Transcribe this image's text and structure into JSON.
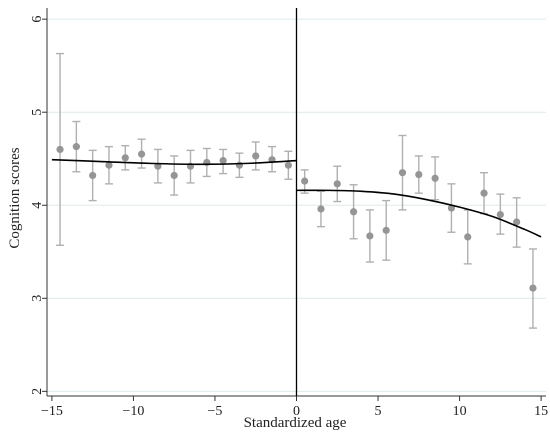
{
  "chart_data": {
    "type": "scatter",
    "title": "",
    "xlabel": "Standardized age",
    "ylabel": "Cognition scores",
    "xlim": [
      -15.3,
      15.3
    ],
    "ylim": [
      1.95,
      6.12
    ],
    "xticks": [
      -15,
      -10,
      -5,
      0,
      5,
      10,
      15
    ],
    "yticks": [
      2,
      3,
      4,
      5,
      6
    ],
    "xtick_labels": [
      "−15",
      "−10",
      "−5",
      "0",
      "5",
      "10",
      "15"
    ],
    "ytick_labels": [
      "2",
      "3",
      "4",
      "5",
      "6"
    ],
    "grid": "horizontal",
    "legend": "none",
    "cutoff_x": 0,
    "colors": {
      "points": "#959595",
      "error_bars": "#b0b0b0",
      "fit_line": "#000000",
      "grid": "#dde9ec"
    },
    "binned_means": [
      {
        "x": -14.5,
        "y": 4.6,
        "lo": 3.57,
        "hi": 5.63
      },
      {
        "x": -13.5,
        "y": 4.63,
        "lo": 4.36,
        "hi": 4.9
      },
      {
        "x": -12.5,
        "y": 4.32,
        "lo": 4.05,
        "hi": 4.59
      },
      {
        "x": -11.5,
        "y": 4.43,
        "lo": 4.23,
        "hi": 4.63
      },
      {
        "x": -10.5,
        "y": 4.51,
        "lo": 4.38,
        "hi": 4.64
      },
      {
        "x": -9.5,
        "y": 4.55,
        "lo": 4.4,
        "hi": 4.71
      },
      {
        "x": -8.5,
        "y": 4.42,
        "lo": 4.24,
        "hi": 4.6
      },
      {
        "x": -7.5,
        "y": 4.32,
        "lo": 4.11,
        "hi": 4.53
      },
      {
        "x": -6.5,
        "y": 4.42,
        "lo": 4.24,
        "hi": 4.59
      },
      {
        "x": -5.5,
        "y": 4.46,
        "lo": 4.31,
        "hi": 4.61
      },
      {
        "x": -4.5,
        "y": 4.48,
        "lo": 4.34,
        "hi": 4.6
      },
      {
        "x": -3.5,
        "y": 4.43,
        "lo": 4.3,
        "hi": 4.56
      },
      {
        "x": -2.5,
        "y": 4.53,
        "lo": 4.38,
        "hi": 4.68
      },
      {
        "x": -1.5,
        "y": 4.49,
        "lo": 4.36,
        "hi": 4.63
      },
      {
        "x": -0.5,
        "y": 4.43,
        "lo": 4.28,
        "hi": 4.58
      },
      {
        "x": 0.5,
        "y": 4.26,
        "lo": 4.13,
        "hi": 4.38
      },
      {
        "x": 1.5,
        "y": 3.96,
        "lo": 3.77,
        "hi": 4.15
      },
      {
        "x": 2.5,
        "y": 4.23,
        "lo": 4.04,
        "hi": 4.42
      },
      {
        "x": 3.5,
        "y": 3.93,
        "lo": 3.64,
        "hi": 4.22
      },
      {
        "x": 4.5,
        "y": 3.67,
        "lo": 3.39,
        "hi": 3.95
      },
      {
        "x": 5.5,
        "y": 3.73,
        "lo": 3.41,
        "hi": 4.05
      },
      {
        "x": 6.5,
        "y": 4.35,
        "lo": 3.95,
        "hi": 4.75
      },
      {
        "x": 7.5,
        "y": 4.33,
        "lo": 4.13,
        "hi": 4.53
      },
      {
        "x": 8.5,
        "y": 4.29,
        "lo": 4.06,
        "hi": 4.52
      },
      {
        "x": 9.5,
        "y": 3.97,
        "lo": 3.71,
        "hi": 4.23
      },
      {
        "x": 10.5,
        "y": 3.66,
        "lo": 3.37,
        "hi": 3.95
      },
      {
        "x": 11.5,
        "y": 4.13,
        "lo": 3.91,
        "hi": 4.35
      },
      {
        "x": 12.5,
        "y": 3.9,
        "lo": 3.69,
        "hi": 4.12
      },
      {
        "x": 13.5,
        "y": 3.82,
        "lo": 3.55,
        "hi": 4.08
      },
      {
        "x": 14.5,
        "y": 3.11,
        "lo": 2.68,
        "hi": 3.53
      }
    ],
    "fit_lines": [
      {
        "segment": "left",
        "points": [
          [
            -15,
            4.49
          ],
          [
            -12,
            4.47
          ],
          [
            -9,
            4.45
          ],
          [
            -6,
            4.44
          ],
          [
            -3,
            4.45
          ],
          [
            0,
            4.48
          ]
        ]
      },
      {
        "segment": "right",
        "points": [
          [
            0,
            4.16
          ],
          [
            2,
            4.16
          ],
          [
            4,
            4.15
          ],
          [
            6,
            4.12
          ],
          [
            8,
            4.06
          ],
          [
            10,
            3.98
          ],
          [
            12,
            3.88
          ],
          [
            14,
            3.74
          ],
          [
            15,
            3.66
          ]
        ]
      }
    ]
  }
}
